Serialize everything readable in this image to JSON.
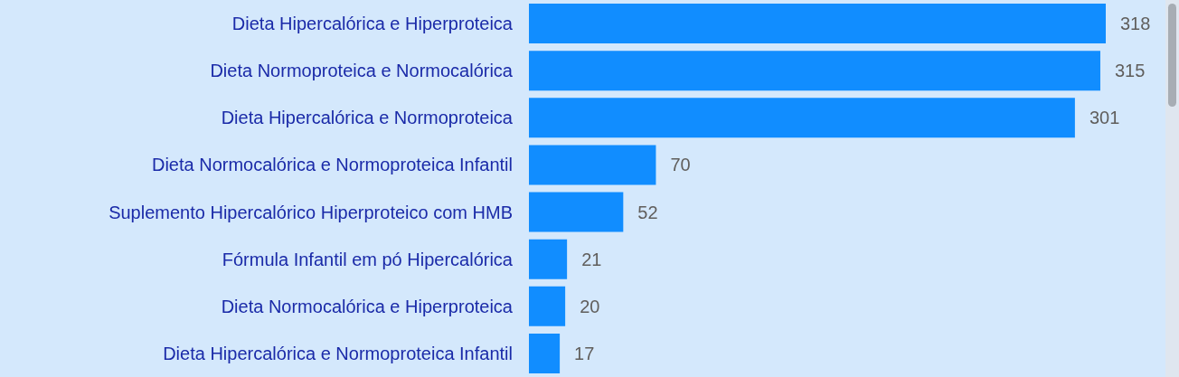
{
  "chart_data": {
    "type": "bar",
    "orientation": "horizontal",
    "data_labels": true,
    "categories": [
      "Dieta Hipercalórica e Hiperproteica",
      "Dieta Normoproteica e Normocalórica",
      "Dieta Hipercalórica e Normoproteica",
      "Dieta Normocalórica e Normoproteica Infantil",
      "Suplemento Hipercalórico Hiperproteico com HMB",
      "Fórmula Infantil em pó Hipercalórica",
      "Dieta Normocalórica e Hiperproteica",
      "Dieta Hipercalórica e Normoproteica Infantil"
    ],
    "values": [
      318,
      315,
      301,
      70,
      52,
      21,
      20,
      17
    ],
    "color": "#118dff"
  }
}
